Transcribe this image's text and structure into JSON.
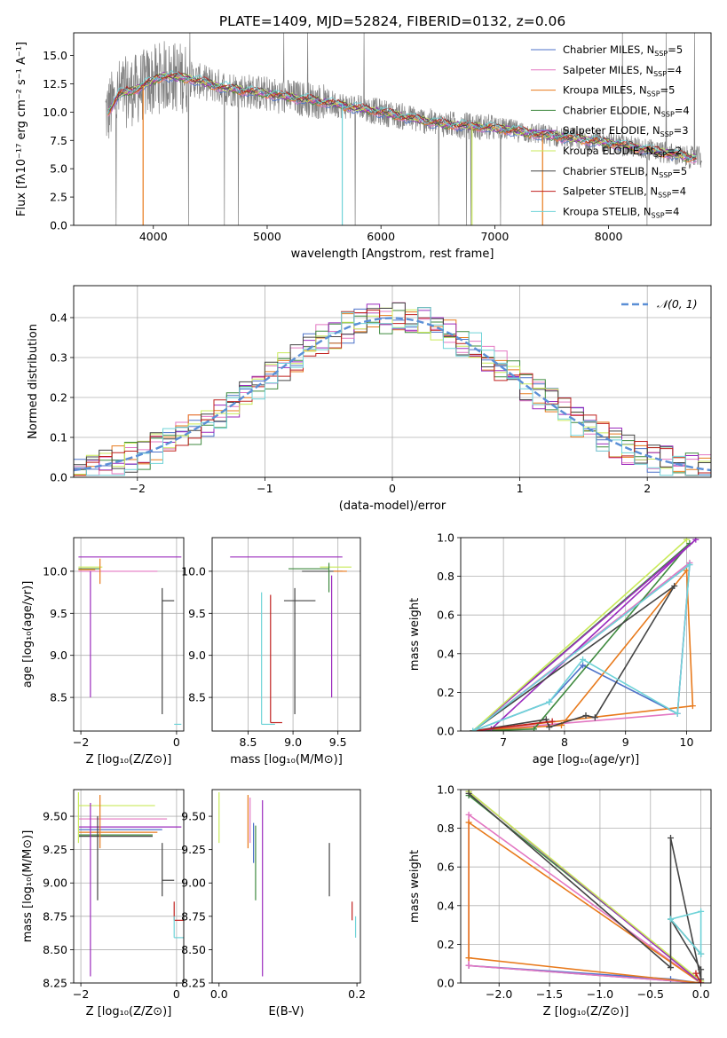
{
  "figure": {
    "title": "PLATE=1409, MJD=52824, FIBERID=0132, z=0.06"
  },
  "colors": {
    "chabrier_miles": "#4d72c9",
    "salpeter_miles": "#e377c2",
    "kroupa_miles": "#e87a1c",
    "chabrier_elodie": "#3f8a3f",
    "salpeter_elodie": "#9b2bbd",
    "kroupa_elodie": "#c9ea5a",
    "chabrier_stelib": "#444444",
    "salpeter_stelib": "#c0211f",
    "kroupa_stelib": "#6fd3d8",
    "data": "#808080",
    "gaussian": "#5b8fd6",
    "grid": "#b0b0b0"
  },
  "legend": [
    {
      "label": "Chabrier MILES, N",
      "n": "5",
      "color_key": "chabrier_miles"
    },
    {
      "label": "Salpeter MILES, N",
      "n": "4",
      "color_key": "salpeter_miles"
    },
    {
      "label": "Kroupa MILES, N",
      "n": "5",
      "color_key": "kroupa_miles"
    },
    {
      "label": "Chabrier ELODIE, N",
      "n": "4",
      "color_key": "chabrier_elodie"
    },
    {
      "label": "Salpeter ELODIE, N",
      "n": "3",
      "color_key": "salpeter_elodie"
    },
    {
      "label": "Kroupa ELODIE, N",
      "n": "2",
      "color_key": "kroupa_elodie"
    },
    {
      "label": "Chabrier STELIB, N",
      "n": "5",
      "color_key": "chabrier_stelib"
    },
    {
      "label": "Salpeter STELIB, N",
      "n": "4",
      "color_key": "salpeter_stelib"
    },
    {
      "label": "Kroupa STELIB, N",
      "n": "4",
      "color_key": "kroupa_stelib"
    }
  ],
  "legend_sub": "SSP",
  "hist_legend": "𝒩(0, 1)",
  "chart_data": [
    {
      "id": "spectrum",
      "type": "line",
      "xlabel": "wavelength [Angstrom, rest frame]",
      "ylabel": "Flux [fλ10⁻¹⁷ erg cm⁻² s⁻¹ A⁻¹]",
      "xlim": [
        3300,
        8900
      ],
      "ylim": [
        0,
        17
      ],
      "xticks": [
        4000,
        5000,
        6000,
        7000,
        8000
      ],
      "yticks": [
        0.0,
        2.5,
        5.0,
        7.5,
        10.0,
        12.5,
        15.0
      ],
      "grid": false,
      "data_range": [
        3580,
        8820
      ],
      "model_profile": [
        [
          3600,
          10.0
        ],
        [
          3700,
          11.6
        ],
        [
          3850,
          12.0
        ],
        [
          3950,
          12.6
        ],
        [
          4100,
          13.2
        ],
        [
          4300,
          13.0
        ],
        [
          4600,
          12.2
        ],
        [
          5000,
          11.6
        ],
        [
          5500,
          10.9
        ],
        [
          6000,
          10.0
        ],
        [
          6500,
          9.0
        ],
        [
          7000,
          8.6
        ],
        [
          7500,
          7.9
        ],
        [
          8000,
          7.3
        ],
        [
          8400,
          6.6
        ],
        [
          8700,
          6.0
        ]
      ]
    },
    {
      "id": "residual_hist",
      "type": "line",
      "xlabel": "(data-model)/error",
      "ylabel": "Normed distribution",
      "xlim": [
        -2.5,
        2.5
      ],
      "ylim": [
        0,
        0.48
      ],
      "xticks": [
        -2,
        -1,
        0,
        1,
        2
      ],
      "yticks": [
        0.0,
        0.1,
        0.2,
        0.3,
        0.4
      ],
      "grid": true,
      "bin_width": 0.1,
      "gaussian": {
        "mean": 0,
        "sigma": 1
      }
    },
    {
      "id": "age_vs_Z",
      "type": "scatter",
      "xlabel": "Z [log₁₀(Z/Z⊙)]",
      "ylabel": "age  [log₁₀(age/yr)]",
      "xlim": [
        -2.15,
        0.15
      ],
      "ylim": [
        8.1,
        10.4
      ],
      "xticks": [
        -2,
        0
      ],
      "yticks": [
        8.5,
        9.0,
        9.5,
        10.0
      ],
      "grid": true,
      "segments": [
        {
          "c": "salpeter_elodie",
          "x": [
            -2.05,
            0.1
          ],
          "y": [
            10.17,
            10.17
          ]
        },
        {
          "c": "kroupa_elodie",
          "x": [
            -2.05,
            -1.55
          ],
          "y": [
            10.05,
            10.05
          ]
        },
        {
          "c": "chabrier_elodie",
          "x": [
            -2.05,
            -1.6
          ],
          "y": [
            10.03,
            10.03
          ]
        },
        {
          "c": "salpeter_miles",
          "x": [
            -2.05,
            -0.4
          ],
          "y": [
            10.0,
            10.0
          ]
        },
        {
          "c": "kroupa_miles",
          "x": [
            -2.05,
            -1.7
          ],
          "y": [
            10.02,
            10.02
          ]
        },
        {
          "c": "kroupa_miles",
          "x": [
            -1.6,
            -1.6
          ],
          "y": [
            9.85,
            10.15
          ]
        },
        {
          "c": "salpeter_elodie",
          "x": [
            -1.8,
            -1.8
          ],
          "y": [
            8.5,
            10.0
          ]
        },
        {
          "c": "chabrier_stelib",
          "x": [
            -0.3,
            -0.3
          ],
          "y": [
            8.3,
            9.8
          ]
        },
        {
          "c": "chabrier_stelib",
          "x": [
            -0.3,
            -0.05
          ],
          "y": [
            9.65,
            9.65
          ]
        },
        {
          "c": "kroupa_stelib",
          "x": [
            -0.05,
            0.1
          ],
          "y": [
            8.18,
            8.18
          ]
        }
      ]
    },
    {
      "id": "age_vs_mass",
      "type": "scatter",
      "xlabel": "mass [log₁₀(M/M⊙)]",
      "ylabel": "",
      "xlim": [
        8.1,
        9.75
      ],
      "ylim": [
        8.1,
        10.4
      ],
      "xticks": [
        8.5,
        9.0,
        9.5
      ],
      "yticks": [
        8.5,
        9.0,
        9.5,
        10.0
      ],
      "grid": true,
      "segments": [
        {
          "c": "salpeter_elodie",
          "x": [
            8.3,
            9.55
          ],
          "y": [
            10.17,
            10.17
          ]
        },
        {
          "c": "chabrier_elodie",
          "x": [
            8.95,
            9.4
          ],
          "y": [
            10.03,
            10.03
          ]
        },
        {
          "c": "chabrier_stelib",
          "x": [
            9.1,
            9.55
          ],
          "y": [
            10.0,
            10.0
          ]
        },
        {
          "c": "kroupa_elodie",
          "x": [
            9.3,
            9.65
          ],
          "y": [
            10.05,
            10.05
          ]
        },
        {
          "c": "kroupa_miles",
          "x": [
            9.45,
            9.6
          ],
          "y": [
            10.0,
            10.0
          ]
        },
        {
          "c": "chabrier_elodie",
          "x": [
            9.4,
            9.4
          ],
          "y": [
            9.75,
            10.1
          ]
        },
        {
          "c": "kroupa_stelib",
          "x": [
            8.65,
            8.65
          ],
          "y": [
            8.18,
            9.75
          ]
        },
        {
          "c": "kroupa_stelib",
          "x": [
            8.65,
            8.8
          ],
          "y": [
            8.18,
            8.18
          ]
        },
        {
          "c": "salpeter_stelib",
          "x": [
            8.75,
            8.75
          ],
          "y": [
            8.2,
            9.72
          ]
        },
        {
          "c": "salpeter_stelib",
          "x": [
            8.75,
            8.88
          ],
          "y": [
            8.2,
            8.2
          ]
        },
        {
          "c": "chabrier_stelib",
          "x": [
            9.02,
            9.02
          ],
          "y": [
            8.3,
            9.8
          ]
        },
        {
          "c": "chabrier_stelib",
          "x": [
            8.9,
            9.25
          ],
          "y": [
            9.65,
            9.65
          ]
        },
        {
          "c": "salpeter_elodie",
          "x": [
            9.43,
            9.43
          ],
          "y": [
            8.5,
            9.95
          ]
        }
      ]
    },
    {
      "id": "weight_vs_age",
      "type": "line",
      "xlabel": "age  [log₁₀(age/yr)]",
      "ylabel": "mass weight",
      "xlim": [
        6.3,
        10.4
      ],
      "ylim": [
        0,
        1
      ],
      "xticks": [
        7,
        8,
        9,
        10
      ],
      "yticks": [
        0.0,
        0.2,
        0.4,
        0.6,
        0.8,
        1.0
      ],
      "grid": true,
      "series": [
        {
          "c": "chabrier_miles",
          "x": [
            6.5,
            7.75,
            8.3,
            9.85,
            10.05,
            6.5
          ],
          "y": [
            0.0,
            0.15,
            0.34,
            0.09,
            0.86,
            0.0
          ]
        },
        {
          "c": "salpeter_miles",
          "x": [
            6.5,
            9.85,
            10.05,
            6.5
          ],
          "y": [
            0.0,
            0.09,
            0.87,
            0.0
          ]
        },
        {
          "c": "kroupa_miles",
          "x": [
            6.5,
            7.95,
            10.0,
            10.1,
            6.5
          ],
          "y": [
            0.0,
            0.03,
            0.83,
            0.13,
            0.0
          ]
        },
        {
          "c": "chabrier_elodie",
          "x": [
            6.5,
            7.5,
            10.05,
            6.5
          ],
          "y": [
            0.0,
            0.01,
            0.97,
            0.0
          ]
        },
        {
          "c": "salpeter_elodie",
          "x": [
            6.5,
            6.8,
            10.15,
            6.5
          ],
          "y": [
            0.0,
            0.01,
            0.99,
            0.0
          ]
        },
        {
          "c": "kroupa_elodie",
          "x": [
            6.5,
            10.0,
            6.5
          ],
          "y": [
            0.0,
            0.99,
            0.0
          ]
        },
        {
          "c": "chabrier_stelib",
          "x": [
            6.5,
            7.7,
            7.75,
            8.35,
            8.5,
            9.8,
            6.5
          ],
          "y": [
            0.0,
            0.06,
            0.02,
            0.08,
            0.07,
            0.75,
            0.0
          ]
        },
        {
          "c": "salpeter_stelib",
          "x": [
            6.5,
            7.8,
            6.5
          ],
          "y": [
            0.0,
            0.05,
            0.0
          ]
        },
        {
          "c": "kroupa_stelib",
          "x": [
            6.5,
            7.75,
            8.3,
            9.85,
            10.05,
            6.5
          ],
          "y": [
            0.0,
            0.15,
            0.37,
            0.09,
            0.86,
            0.0
          ]
        }
      ]
    },
    {
      "id": "mass_vs_Z",
      "type": "scatter",
      "xlabel": "Z [log₁₀(Z/Z⊙)]",
      "ylabel": "mass [log₁₀(M/M⊙)]",
      "xlim": [
        -2.15,
        0.15
      ],
      "ylim": [
        8.25,
        9.7
      ],
      "xticks": [
        -2,
        0
      ],
      "yticks": [
        8.25,
        8.5,
        8.75,
        9.0,
        9.25,
        9.5
      ],
      "grid": true,
      "segments": [
        {
          "c": "kroupa_elodie",
          "x": [
            -2.05,
            -0.45
          ],
          "y": [
            9.58,
            9.58
          ]
        },
        {
          "c": "salpeter_miles",
          "x": [
            -2.05,
            -0.2
          ],
          "y": [
            9.48,
            9.48
          ]
        },
        {
          "c": "salpeter_elodie",
          "x": [
            -2.05,
            0.1
          ],
          "y": [
            9.42,
            9.42
          ]
        },
        {
          "c": "chabrier_miles",
          "x": [
            -2.05,
            -0.3
          ],
          "y": [
            9.4,
            9.4
          ]
        },
        {
          "c": "kroupa_miles",
          "x": [
            -2.05,
            -0.4
          ],
          "y": [
            9.38,
            9.38
          ]
        },
        {
          "c": "chabrier_elodie",
          "x": [
            -2.05,
            -0.5
          ],
          "y": [
            9.36,
            9.36
          ]
        },
        {
          "c": "chabrier_stelib",
          "x": [
            -2.05,
            -0.5
          ],
          "y": [
            9.35,
            9.35
          ]
        },
        {
          "c": "kroupa_elodie",
          "x": [
            -2.05,
            -2.05
          ],
          "y": [
            9.3,
            9.68
          ]
        },
        {
          "c": "kroupa_miles",
          "x": [
            -1.6,
            -1.6
          ],
          "y": [
            9.26,
            9.66
          ]
        },
        {
          "c": "salpeter_elodie",
          "x": [
            -1.8,
            -1.8
          ],
          "y": [
            8.3,
            9.6
          ]
        },
        {
          "c": "chabrier_stelib",
          "x": [
            -1.65,
            -1.65
          ],
          "y": [
            8.87,
            9.5
          ]
        },
        {
          "c": "chabrier_stelib",
          "x": [
            -0.3,
            -0.3
          ],
          "y": [
            8.9,
            9.3
          ]
        },
        {
          "c": "chabrier_stelib",
          "x": [
            -0.3,
            -0.05
          ],
          "y": [
            9.02,
            9.02
          ]
        },
        {
          "c": "salpeter_stelib",
          "x": [
            -0.05,
            -0.05
          ],
          "y": [
            8.72,
            8.86
          ]
        },
        {
          "c": "salpeter_stelib",
          "x": [
            -0.05,
            0.15
          ],
          "y": [
            8.72,
            8.72
          ]
        },
        {
          "c": "kroupa_stelib",
          "x": [
            -0.05,
            -0.05
          ],
          "y": [
            8.59,
            8.75
          ]
        },
        {
          "c": "kroupa_stelib",
          "x": [
            -0.05,
            0.15
          ],
          "y": [
            8.59,
            8.59
          ]
        }
      ]
    },
    {
      "id": "mass_vs_ebv",
      "type": "scatter",
      "xlabel": "E(B-V)",
      "ylabel": "",
      "xlim": [
        -0.01,
        0.205
      ],
      "ylim": [
        8.25,
        9.7
      ],
      "xticks": [
        0.0,
        0.2
      ],
      "yticks": [
        8.25,
        8.5,
        8.75,
        9.0,
        9.25,
        9.5
      ],
      "grid": false,
      "segments": [
        {
          "c": "kroupa_elodie",
          "x": [
            0.0,
            0.0
          ],
          "y": [
            9.3,
            9.68
          ]
        },
        {
          "c": "kroupa_miles",
          "x": [
            0.042,
            0.042
          ],
          "y": [
            9.26,
            9.66
          ]
        },
        {
          "c": "salpeter_miles",
          "x": [
            0.045,
            0.045
          ],
          "y": [
            9.3,
            9.64
          ]
        },
        {
          "c": "chabrier_miles",
          "x": [
            0.05,
            0.05
          ],
          "y": [
            9.15,
            9.45
          ]
        },
        {
          "c": "chabrier_elodie",
          "x": [
            0.053,
            0.053
          ],
          "y": [
            8.87,
            9.43
          ]
        },
        {
          "c": "salpeter_elodie",
          "x": [
            0.063,
            0.063
          ],
          "y": [
            8.3,
            9.62
          ]
        },
        {
          "c": "chabrier_stelib",
          "x": [
            0.16,
            0.16
          ],
          "y": [
            8.9,
            9.3
          ]
        },
        {
          "c": "salpeter_stelib",
          "x": [
            0.193,
            0.193
          ],
          "y": [
            8.72,
            8.86
          ]
        },
        {
          "c": "kroupa_stelib",
          "x": [
            0.198,
            0.198
          ],
          "y": [
            8.59,
            8.75
          ]
        }
      ]
    },
    {
      "id": "weight_vs_Z",
      "type": "line",
      "xlabel": "Z [log₁₀(Z/Z⊙)]",
      "ylabel": "mass weight",
      "xlim": [
        -2.38,
        0.1
      ],
      "ylim": [
        0,
        1
      ],
      "xticks": [
        -2.0,
        -1.5,
        -1.0,
        -0.5,
        0.0
      ],
      "yticks": [
        0.0,
        0.2,
        0.4,
        0.6,
        0.8,
        1.0
      ],
      "grid": true,
      "series": [
        {
          "c": "chabrier_miles",
          "x": [
            -2.3,
            -0.3,
            0.0,
            -2.3
          ],
          "y": [
            0.09,
            0.02,
            0.0,
            0.09
          ]
        },
        {
          "c": "salpeter_miles",
          "x": [
            -2.3,
            0.0,
            -2.3,
            -2.3
          ],
          "y": [
            0.09,
            0.0,
            0.87,
            0.09
          ]
        },
        {
          "c": "kroupa_miles",
          "x": [
            -2.3,
            -2.3,
            0.0,
            -2.3
          ],
          "y": [
            0.13,
            0.83,
            0.0,
            0.13
          ]
        },
        {
          "c": "chabrier_elodie",
          "x": [
            -2.3,
            0.0
          ],
          "y": [
            0.97,
            0.01
          ]
        },
        {
          "c": "salpeter_elodie",
          "x": [
            -2.3,
            0.0
          ],
          "y": [
            0.99,
            0.0
          ]
        },
        {
          "c": "kroupa_elodie",
          "x": [
            -2.3,
            0.0
          ],
          "y": [
            0.99,
            0.01
          ]
        },
        {
          "c": "chabrier_stelib",
          "x": [
            -2.3,
            -0.3,
            -0.3,
            0.0,
            0.0,
            -0.3,
            0.0
          ],
          "y": [
            0.98,
            0.08,
            0.75,
            0.02,
            0.07,
            0.33,
            0.15
          ]
        },
        {
          "c": "salpeter_stelib",
          "x": [
            -0.05,
            0.0
          ],
          "y": [
            0.05,
            0.0
          ]
        },
        {
          "c": "kroupa_stelib",
          "x": [
            -0.3,
            0.0,
            0.0,
            -0.3
          ],
          "y": [
            0.33,
            0.15,
            0.37,
            0.33
          ]
        }
      ]
    }
  ]
}
